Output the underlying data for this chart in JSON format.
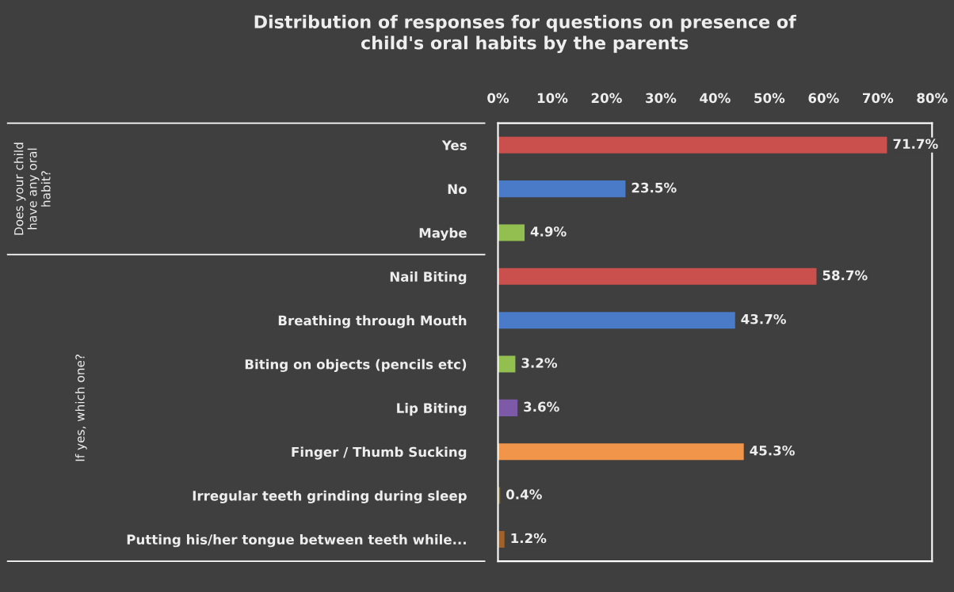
{
  "chart_data": {
    "type": "bar",
    "orientation": "horizontal",
    "title": "Distribution of responses for questions on presence of\nchild's oral habits by the parents",
    "categories": [
      "Yes",
      "No",
      "Maybe",
      "Nail Biting",
      "Breathing through Mouth",
      "Biting on objects (pencils etc)",
      "Lip Biting",
      "Finger / Thumb Sucking",
      "Irregular teeth grinding during sleep",
      "Putting his/her tongue between teeth while..."
    ],
    "values": [
      71.7,
      23.5,
      4.9,
      58.7,
      43.7,
      3.2,
      3.6,
      45.3,
      0.4,
      1.2
    ],
    "colors": [
      "#c9504c",
      "#4a7bc8",
      "#93bf50",
      "#c9504c",
      "#4a7bc8",
      "#93bf50",
      "#7d5aa8",
      "#f0954a",
      "#7a7040",
      "#a0612a"
    ],
    "value_labels": [
      "71.7%",
      "23.5%",
      "4.9%",
      "58.7%",
      "43.7%",
      "3.2%",
      "3.6%",
      "45.3%",
      "0.4%",
      "1.2%"
    ],
    "xlim": [
      0,
      80
    ],
    "xticks": [
      {
        "value": 0,
        "label": "0%"
      },
      {
        "value": 10,
        "label": "10%"
      },
      {
        "value": 20,
        "label": "20%"
      },
      {
        "value": 30,
        "label": "30%"
      },
      {
        "value": 40,
        "label": "40%"
      },
      {
        "value": 50,
        "label": "50%"
      },
      {
        "value": 60,
        "label": "60%"
      },
      {
        "value": 70,
        "label": "70%"
      },
      {
        "value": 80,
        "label": "80%"
      }
    ],
    "annotations": [
      "Does your child\nhave any oral\nhabit?",
      "If yes, which one?"
    ],
    "grid": false,
    "legend": false
  }
}
